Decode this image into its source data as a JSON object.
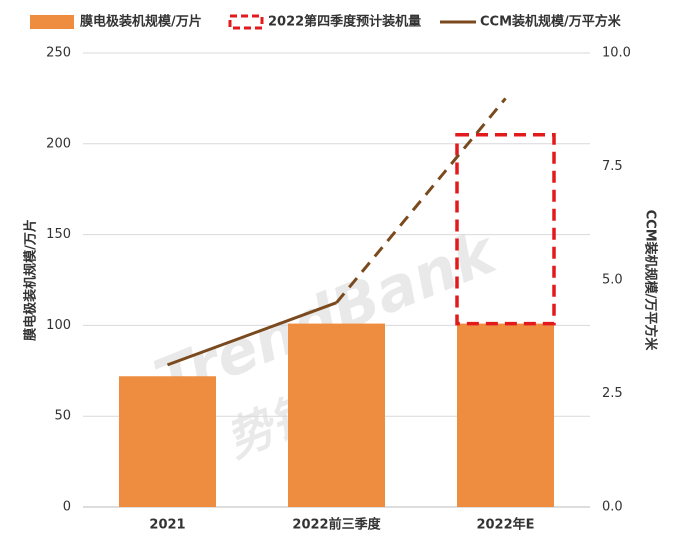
{
  "chart_data": {
    "type": "bar",
    "categories": [
      "2021",
      "2022前三季度",
      "2022年E"
    ],
    "series": [
      {
        "name": "膜电极装机规模/万片",
        "color": "#ee8c40",
        "values": [
          72,
          101,
          101
        ]
      },
      {
        "name": "2022第四季度预计装机量",
        "color": "#e31a1c",
        "values": [
          null,
          null,
          104
        ],
        "style": "dashed-box"
      },
      {
        "name": "CCM装机规模/万平方米",
        "color": "#7a4a1e",
        "values": [
          3.13,
          4.5,
          9.0
        ],
        "axis": "y2",
        "type": "line",
        "dashed_after": 1
      }
    ],
    "y_label": "膜电极装机规模/万片",
    "y2_label": "CCM装机规模/万平方米",
    "ylim": [
      0,
      250
    ],
    "yticks": [
      0,
      50,
      100,
      150,
      200,
      250
    ],
    "y2lim": [
      0,
      10
    ],
    "y2ticks": [
      {
        "value": 0,
        "label": "0.0"
      },
      2.5,
      {
        "value": 5,
        "label": "5.0"
      },
      7.5,
      {
        "value": 10,
        "label": "10.0"
      }
    ],
    "grid": true,
    "watermark": [
      "TrendBank",
      "势银"
    ]
  }
}
